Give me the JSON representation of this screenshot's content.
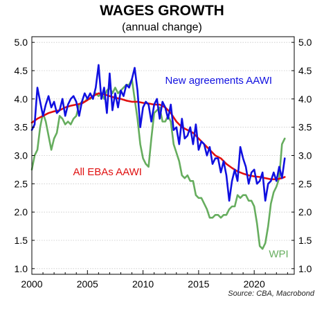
{
  "chart_data": {
    "type": "line",
    "title": "WAGES GROWTH",
    "subtitle": "(annual change)",
    "source": "Source: CBA, Macrobond",
    "xlim": [
      2000,
      2023.6
    ],
    "ylim": [
      0.9,
      5.1
    ],
    "xticks": [
      2000,
      2005,
      2010,
      2015,
      2020
    ],
    "yticks": [
      "1.0",
      "1.5",
      "2.0",
      "2.5",
      "3.0",
      "3.5",
      "4.0",
      "4.5",
      "5.0"
    ],
    "grid": true,
    "series": [
      {
        "name": "New agreements AAWI",
        "color": "#1010e0",
        "points": [
          [
            2000.0,
            3.45
          ],
          [
            2000.25,
            3.55
          ],
          [
            2000.5,
            4.2
          ],
          [
            2000.75,
            3.95
          ],
          [
            2001.0,
            3.7
          ],
          [
            2001.25,
            3.9
          ],
          [
            2001.5,
            4.05
          ],
          [
            2001.75,
            3.85
          ],
          [
            2002.0,
            3.95
          ],
          [
            2002.25,
            3.75
          ],
          [
            2002.5,
            3.8
          ],
          [
            2002.75,
            4.0
          ],
          [
            2003.0,
            3.7
          ],
          [
            2003.25,
            3.9
          ],
          [
            2003.5,
            4.0
          ],
          [
            2003.75,
            4.05
          ],
          [
            2004.0,
            3.95
          ],
          [
            2004.25,
            3.7
          ],
          [
            2004.5,
            3.95
          ],
          [
            2004.75,
            4.1
          ],
          [
            2005.0,
            4.0
          ],
          [
            2005.25,
            4.1
          ],
          [
            2005.5,
            4.0
          ],
          [
            2005.75,
            4.2
          ],
          [
            2006.0,
            4.6
          ],
          [
            2006.25,
            4.0
          ],
          [
            2006.5,
            4.2
          ],
          [
            2006.75,
            3.75
          ],
          [
            2007.0,
            4.45
          ],
          [
            2007.25,
            3.8
          ],
          [
            2007.5,
            4.1
          ],
          [
            2007.75,
            3.85
          ],
          [
            2008.0,
            4.15
          ],
          [
            2008.25,
            4.05
          ],
          [
            2008.5,
            4.25
          ],
          [
            2008.75,
            4.2
          ],
          [
            2009.0,
            4.35
          ],
          [
            2009.25,
            4.55
          ],
          [
            2009.5,
            4.15
          ],
          [
            2009.75,
            3.5
          ],
          [
            2010.0,
            3.85
          ],
          [
            2010.25,
            3.95
          ],
          [
            2010.5,
            3.9
          ],
          [
            2010.75,
            3.6
          ],
          [
            2011.0,
            3.9
          ],
          [
            2011.25,
            4.0
          ],
          [
            2011.5,
            3.65
          ],
          [
            2011.75,
            3.95
          ],
          [
            2012.0,
            3.85
          ],
          [
            2012.25,
            3.65
          ],
          [
            2012.5,
            3.9
          ],
          [
            2012.75,
            3.45
          ],
          [
            2013.0,
            3.5
          ],
          [
            2013.25,
            3.2
          ],
          [
            2013.5,
            3.65
          ],
          [
            2013.75,
            3.3
          ],
          [
            2014.0,
            3.35
          ],
          [
            2014.25,
            3.5
          ],
          [
            2014.5,
            3.2
          ],
          [
            2014.75,
            3.55
          ],
          [
            2015.0,
            3.1
          ],
          [
            2015.25,
            3.25
          ],
          [
            2015.5,
            3.2
          ],
          [
            2015.75,
            3.0
          ],
          [
            2016.0,
            3.15
          ],
          [
            2016.25,
            2.85
          ],
          [
            2016.5,
            2.95
          ],
          [
            2016.75,
            2.95
          ],
          [
            2017.0,
            2.7
          ],
          [
            2017.25,
            2.9
          ],
          [
            2017.5,
            2.65
          ],
          [
            2017.75,
            2.2
          ],
          [
            2018.0,
            2.55
          ],
          [
            2018.25,
            2.75
          ],
          [
            2018.5,
            2.55
          ],
          [
            2018.75,
            3.15
          ],
          [
            2019.0,
            2.95
          ],
          [
            2019.25,
            2.8
          ],
          [
            2019.5,
            2.5
          ],
          [
            2019.75,
            2.7
          ],
          [
            2020.0,
            2.75
          ],
          [
            2020.25,
            2.5
          ],
          [
            2020.5,
            2.55
          ],
          [
            2020.75,
            2.7
          ],
          [
            2021.0,
            2.2
          ],
          [
            2021.25,
            2.5
          ],
          [
            2021.5,
            2.55
          ],
          [
            2021.75,
            2.7
          ],
          [
            2022.0,
            2.55
          ],
          [
            2022.25,
            2.8
          ],
          [
            2022.5,
            2.6
          ],
          [
            2022.75,
            2.95
          ]
        ]
      },
      {
        "name": "All EBAs AAWI",
        "color": "#e01010",
        "points": [
          [
            2000.0,
            3.58
          ],
          [
            2000.5,
            3.65
          ],
          [
            2001.0,
            3.7
          ],
          [
            2001.5,
            3.75
          ],
          [
            2002.0,
            3.78
          ],
          [
            2002.5,
            3.8
          ],
          [
            2003.0,
            3.85
          ],
          [
            2003.5,
            3.88
          ],
          [
            2004.0,
            3.9
          ],
          [
            2004.5,
            3.92
          ],
          [
            2005.0,
            3.98
          ],
          [
            2005.5,
            4.05
          ],
          [
            2006.0,
            4.1
          ],
          [
            2006.5,
            4.08
          ],
          [
            2007.0,
            4.05
          ],
          [
            2007.5,
            4.02
          ],
          [
            2008.0,
            4.0
          ],
          [
            2008.5,
            3.97
          ],
          [
            2009.0,
            3.95
          ],
          [
            2009.5,
            3.95
          ],
          [
            2010.0,
            3.93
          ],
          [
            2010.5,
            3.92
          ],
          [
            2011.0,
            3.9
          ],
          [
            2011.5,
            3.9
          ],
          [
            2012.0,
            3.85
          ],
          [
            2012.5,
            3.75
          ],
          [
            2013.0,
            3.6
          ],
          [
            2013.5,
            3.5
          ],
          [
            2014.0,
            3.45
          ],
          [
            2014.5,
            3.4
          ],
          [
            2015.0,
            3.3
          ],
          [
            2015.5,
            3.2
          ],
          [
            2016.0,
            3.1
          ],
          [
            2016.5,
            3.0
          ],
          [
            2017.0,
            2.95
          ],
          [
            2017.5,
            2.85
          ],
          [
            2018.0,
            2.78
          ],
          [
            2018.5,
            2.72
          ],
          [
            2019.0,
            2.68
          ],
          [
            2019.5,
            2.65
          ],
          [
            2020.0,
            2.63
          ],
          [
            2020.5,
            2.62
          ],
          [
            2021.0,
            2.6
          ],
          [
            2021.5,
            2.58
          ],
          [
            2022.0,
            2.58
          ],
          [
            2022.5,
            2.6
          ],
          [
            2022.75,
            2.62
          ]
        ]
      },
      {
        "name": "WPI",
        "color": "#66ad5e",
        "points": [
          [
            2000.0,
            2.75
          ],
          [
            2000.25,
            3.0
          ],
          [
            2000.5,
            3.1
          ],
          [
            2000.75,
            3.5
          ],
          [
            2001.0,
            3.75
          ],
          [
            2001.25,
            3.6
          ],
          [
            2001.5,
            3.35
          ],
          [
            2001.75,
            3.1
          ],
          [
            2002.0,
            3.3
          ],
          [
            2002.25,
            3.4
          ],
          [
            2002.5,
            3.7
          ],
          [
            2002.75,
            3.65
          ],
          [
            2003.0,
            3.55
          ],
          [
            2003.25,
            3.6
          ],
          [
            2003.5,
            3.55
          ],
          [
            2003.75,
            3.65
          ],
          [
            2004.0,
            3.7
          ],
          [
            2004.25,
            3.9
          ],
          [
            2004.5,
            3.95
          ],
          [
            2004.75,
            3.95
          ],
          [
            2005.0,
            4.0
          ],
          [
            2005.25,
            4.0
          ],
          [
            2005.5,
            4.05
          ],
          [
            2005.75,
            4.1
          ],
          [
            2006.0,
            4.05
          ],
          [
            2006.25,
            4.1
          ],
          [
            2006.5,
            4.0
          ],
          [
            2006.75,
            4.15
          ],
          [
            2007.0,
            4.2
          ],
          [
            2007.25,
            4.1
          ],
          [
            2007.5,
            4.2
          ],
          [
            2007.75,
            4.1
          ],
          [
            2008.0,
            4.15
          ],
          [
            2008.25,
            4.2
          ],
          [
            2008.5,
            4.25
          ],
          [
            2008.75,
            4.25
          ],
          [
            2009.0,
            4.35
          ],
          [
            2009.25,
            4.0
          ],
          [
            2009.5,
            3.65
          ],
          [
            2009.75,
            3.2
          ],
          [
            2010.0,
            2.95
          ],
          [
            2010.25,
            2.85
          ],
          [
            2010.5,
            2.8
          ],
          [
            2010.75,
            3.3
          ],
          [
            2011.0,
            3.75
          ],
          [
            2011.25,
            3.8
          ],
          [
            2011.5,
            3.85
          ],
          [
            2011.75,
            3.6
          ],
          [
            2012.0,
            3.6
          ],
          [
            2012.25,
            3.7
          ],
          [
            2012.5,
            3.6
          ],
          [
            2012.75,
            3.2
          ],
          [
            2013.0,
            3.05
          ],
          [
            2013.25,
            2.9
          ],
          [
            2013.5,
            2.65
          ],
          [
            2013.75,
            2.6
          ],
          [
            2014.0,
            2.65
          ],
          [
            2014.25,
            2.55
          ],
          [
            2014.5,
            2.55
          ],
          [
            2014.75,
            2.3
          ],
          [
            2015.0,
            2.25
          ],
          [
            2015.25,
            2.25
          ],
          [
            2015.5,
            2.15
          ],
          [
            2015.75,
            2.05
          ],
          [
            2016.0,
            1.9
          ],
          [
            2016.25,
            1.9
          ],
          [
            2016.5,
            1.95
          ],
          [
            2016.75,
            1.95
          ],
          [
            2017.0,
            1.9
          ],
          [
            2017.25,
            1.95
          ],
          [
            2017.5,
            1.95
          ],
          [
            2017.75,
            2.05
          ],
          [
            2018.0,
            2.1
          ],
          [
            2018.25,
            2.1
          ],
          [
            2018.5,
            2.3
          ],
          [
            2018.75,
            2.25
          ],
          [
            2019.0,
            2.3
          ],
          [
            2019.25,
            2.3
          ],
          [
            2019.5,
            2.2
          ],
          [
            2019.75,
            2.2
          ],
          [
            2020.0,
            2.1
          ],
          [
            2020.25,
            1.8
          ],
          [
            2020.5,
            1.4
          ],
          [
            2020.75,
            1.35
          ],
          [
            2021.0,
            1.45
          ],
          [
            2021.25,
            1.75
          ],
          [
            2021.5,
            2.15
          ],
          [
            2021.75,
            2.35
          ],
          [
            2022.0,
            2.45
          ],
          [
            2022.25,
            2.6
          ],
          [
            2022.5,
            3.2
          ],
          [
            2022.75,
            3.3
          ]
        ]
      }
    ],
    "annotations": [
      {
        "text": "New agreements AAWI",
        "x": 2016.8,
        "y": 4.27,
        "color": "#1010e0"
      },
      {
        "text": "All EBAs AAWI",
        "x": 2006.8,
        "y": 2.65,
        "color": "#e01010"
      },
      {
        "text": "WPI",
        "x": 2022.2,
        "y": 1.2,
        "color": "#66ad5e"
      }
    ]
  }
}
